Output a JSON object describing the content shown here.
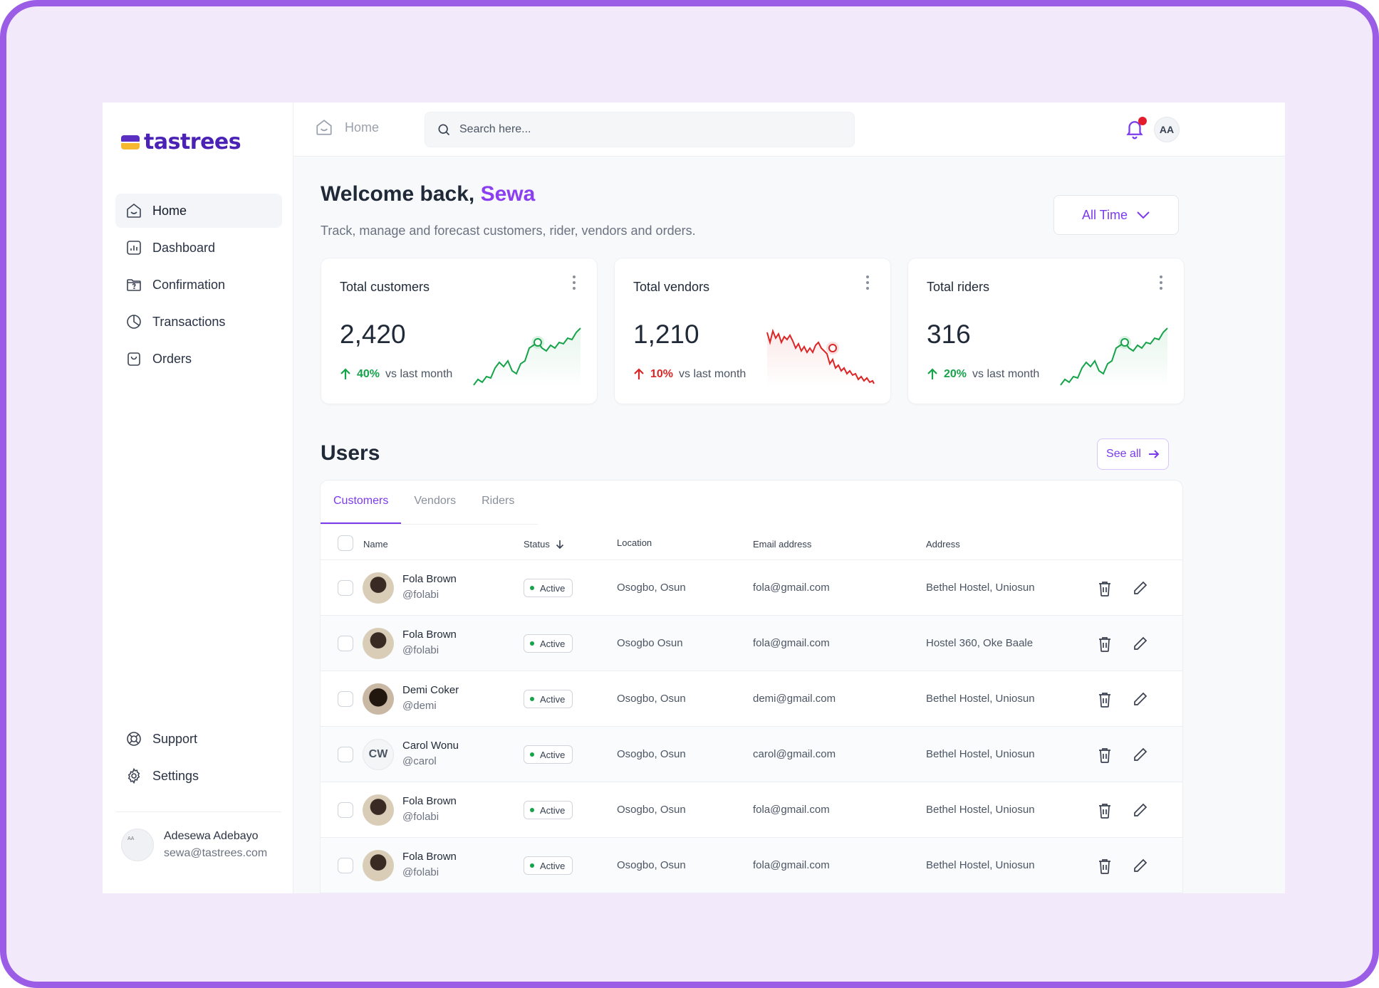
{
  "app": {
    "brand": "tastrees"
  },
  "sidebar": {
    "items": [
      {
        "label": "Home",
        "icon": "home-icon",
        "active": true
      },
      {
        "label": "Dashboard",
        "icon": "bar-chart-icon"
      },
      {
        "label": "Confirmation",
        "icon": "question-folder-icon"
      },
      {
        "label": "Transactions",
        "icon": "pie-chart-icon"
      },
      {
        "label": "Orders",
        "icon": "bag-icon"
      }
    ],
    "bottom": [
      {
        "label": "Support",
        "icon": "lifebuoy-icon"
      },
      {
        "label": "Settings",
        "icon": "gear-icon"
      }
    ],
    "profile": {
      "initials": "AA",
      "name": "Adesewa Adebayo",
      "email": "sewa@tastrees.com"
    }
  },
  "topbar": {
    "breadcrumb": "Home",
    "search_placeholder": "Search here...",
    "avatar_initials": "AA"
  },
  "welcome": {
    "greeting": "Welcome back,",
    "name": "Sewa",
    "subtitle": "Track, manage and forecast customers, rider, vendors and orders."
  },
  "filter": {
    "label": "All Time"
  },
  "cards": [
    {
      "title": "Total customers",
      "value": "2,420",
      "change": "40%",
      "direction": "up",
      "color": "#16a34a",
      "note": "vs last month"
    },
    {
      "title": "Total vendors",
      "value": "1,210",
      "change": "10%",
      "direction": "up",
      "color": "#dc2626",
      "note": "vs last month"
    },
    {
      "title": "Total riders",
      "value": "316",
      "change": "20%",
      "direction": "up",
      "color": "#16a34a",
      "note": "vs last month"
    }
  ],
  "colors": {
    "accent": "#7c3aed",
    "positive": "#16a34a",
    "negative": "#dc2626"
  },
  "users": {
    "title": "Users",
    "see_all": "See all",
    "tabs": [
      "Customers",
      "Vendors",
      "Riders"
    ],
    "active_tab": "Customers",
    "columns": {
      "name": "Name",
      "status": "Status",
      "location": "Location",
      "email": "Email address",
      "address": "Address"
    },
    "rows": [
      {
        "name": "Fola Brown",
        "handle": "@folabi",
        "status": "Active",
        "location": "Osogbo, Osun",
        "email": "fola@gmail.com",
        "address": "Bethel Hostel, Uniosun"
      },
      {
        "name": "Fola Brown",
        "handle": "@folabi",
        "status": "Active",
        "location": "Osogbo Osun",
        "email": "fola@gmail.com",
        "address": "Hostel 360, Oke Baale"
      },
      {
        "name": "Demi Coker",
        "handle": "@demi",
        "status": "Active",
        "location": "Osogbo, Osun",
        "email": "demi@gmail.com",
        "address": "Bethel Hostel, Uniosun"
      },
      {
        "name": "Carol Wonu",
        "handle": "@carol",
        "initials": "CW",
        "status": "Active",
        "location": "Osogbo, Osun",
        "email": "carol@gmail.com",
        "address": "Bethel Hostel, Uniosun"
      },
      {
        "name": "Fola Brown",
        "handle": "@folabi",
        "status": "Active",
        "location": "Osogbo, Osun",
        "email": "fola@gmail.com",
        "address": "Bethel Hostel, Uniosun"
      },
      {
        "name": "Fola Brown",
        "handle": "@folabi",
        "status": "Active",
        "location": "Osogbo, Osun",
        "email": "fola@gmail.com",
        "address": "Bethel Hostel, Uniosun"
      }
    ]
  }
}
